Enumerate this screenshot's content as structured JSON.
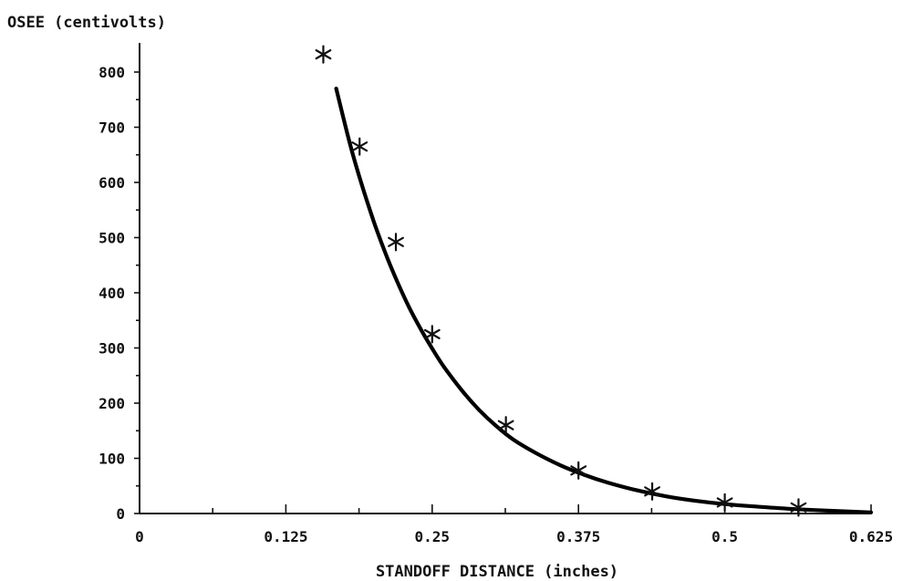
{
  "chart_data": {
    "type": "scatter",
    "title": "",
    "xlabel": "STANDOFF DISTANCE (inches)",
    "ylabel": "OSEE (centivolts)",
    "xlim": [
      0,
      0.625
    ],
    "ylim": [
      0,
      840
    ],
    "x_ticks": [
      0,
      0.125,
      0.25,
      0.375,
      0.5,
      0.625
    ],
    "x_tick_labels": [
      "0",
      "0.125",
      "0.25",
      "0.375",
      "0.5",
      "0.625"
    ],
    "x_minor_step": 0.0625,
    "y_ticks": [
      0,
      100,
      200,
      300,
      400,
      500,
      600,
      700,
      800
    ],
    "y_tick_labels": [
      "0",
      "100",
      "200",
      "300",
      "400",
      "500",
      "600",
      "700",
      "800"
    ],
    "y_minor_step": 50,
    "grid": false,
    "legend": "none",
    "series": [
      {
        "marker": "asterisk",
        "x": [
          0.157,
          0.188,
          0.219,
          0.25,
          0.313,
          0.375,
          0.438,
          0.5,
          0.563
        ],
        "y": [
          832,
          665,
          492,
          325,
          160,
          78,
          40,
          20,
          11
        ]
      }
    ],
    "fit_curve": {
      "style": "bold-line",
      "x": [
        0.168,
        0.18,
        0.19,
        0.2,
        0.21,
        0.22,
        0.23,
        0.24,
        0.25,
        0.26,
        0.275,
        0.29,
        0.305,
        0.32,
        0.34,
        0.36,
        0.38,
        0.4,
        0.425,
        0.45,
        0.475,
        0.5,
        0.53,
        0.56,
        0.59,
        0.625
      ],
      "y": [
        770,
        668,
        595,
        530,
        472,
        421,
        375,
        335,
        299,
        266,
        224,
        188,
        158,
        133,
        108,
        87,
        70,
        56,
        42,
        31,
        23,
        17,
        12,
        8,
        5,
        2
      ]
    }
  }
}
